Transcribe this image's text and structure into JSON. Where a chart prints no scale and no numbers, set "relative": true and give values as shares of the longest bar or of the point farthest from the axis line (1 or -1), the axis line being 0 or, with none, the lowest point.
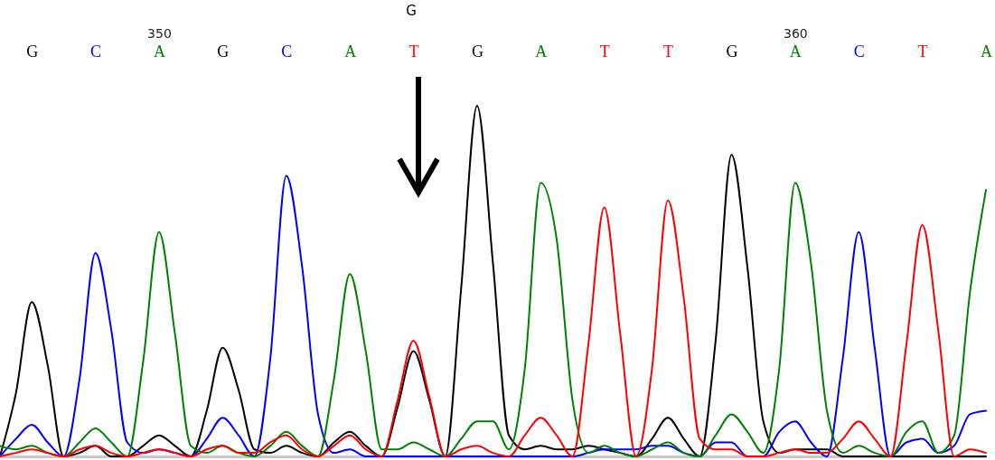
{
  "chart_data": {
    "type": "line",
    "relative": true,
    "annotations": [
      "G"
    ],
    "categories": [
      null,
      null,
      "G",
      null,
      null,
      null,
      "C",
      null,
      null,
      null,
      "A",
      null,
      null,
      null,
      "G",
      null,
      null,
      null,
      "C",
      null,
      null,
      null,
      "A",
      null,
      null,
      null,
      "T",
      null,
      null,
      null,
      "G",
      null,
      null,
      null,
      "A",
      null,
      null,
      null,
      "T",
      null,
      null,
      null,
      "T",
      null,
      null,
      null,
      "G",
      null,
      null,
      null,
      "A",
      null,
      null,
      null,
      "C",
      null,
      null,
      null,
      "T",
      null,
      null,
      null,
      "A"
    ],
    "x2lim": [
      347.5,
      363
    ],
    "x2ticks": [
      350,
      360
    ],
    "series": [
      {
        "color": "#000000",
        "values": [
          0,
          0.18,
          0.44,
          0.26,
          0,
          0.01,
          0.03,
          0,
          0,
          0.03,
          0.06,
          0.03,
          0,
          0.13,
          0.31,
          0.19,
          0.02,
          0.01,
          0.03,
          0.01,
          0,
          0.04,
          0.07,
          0.03,
          0,
          0.14,
          0.3,
          0.16,
          0,
          0.48,
          1,
          0.55,
          0.06,
          0.02,
          0.03,
          0.02,
          0.02,
          0.03,
          0.02,
          0.01,
          0,
          0.05,
          0.11,
          0.05,
          0,
          0.33,
          0.86,
          0.54,
          0.1,
          0.01,
          0.02,
          0.02,
          0.02,
          0,
          0,
          0,
          0,
          0,
          0,
          0,
          0,
          0,
          0
        ]
      },
      {
        "color": "#0000ff",
        "values": [
          0,
          0.05,
          0.09,
          0.04,
          0,
          0.22,
          0.58,
          0.36,
          0.04,
          0.01,
          0.02,
          0.01,
          0,
          0.05,
          0.11,
          0.06,
          0,
          0.28,
          0.8,
          0.54,
          0.12,
          0.01,
          0.02,
          0,
          0,
          0,
          0,
          0,
          0,
          0,
          0,
          0,
          0,
          0,
          0,
          0,
          0,
          0.01,
          0.02,
          0.02,
          0.02,
          0.03,
          0.03,
          0.01,
          0,
          0.04,
          0.04,
          0,
          0,
          0.07,
          0.1,
          0.04,
          0,
          0.28,
          0.64,
          0.31,
          0,
          0.04,
          0.05,
          0.01,
          0.03,
          0.12,
          0.13
        ]
      },
      {
        "color": "#008000",
        "values": [
          0.03,
          0.02,
          0.03,
          0.01,
          0,
          0.04,
          0.08,
          0.04,
          0,
          0.27,
          0.64,
          0.35,
          0.03,
          0.01,
          0.03,
          0.01,
          0,
          0.03,
          0.07,
          0.03,
          0,
          0.22,
          0.52,
          0.3,
          0.02,
          0.02,
          0.04,
          0.02,
          0,
          0.05,
          0.1,
          0.1,
          0.02,
          0.25,
          0.78,
          0.62,
          0.16,
          0.01,
          0.03,
          0.01,
          0,
          0.02,
          0.04,
          0.01,
          0,
          0.06,
          0.12,
          0.07,
          0.01,
          0.25,
          0.78,
          0.55,
          0.13,
          0.01,
          0.03,
          0.01,
          0,
          0.07,
          0.1,
          0.01,
          0.06,
          0.47,
          0.76
        ]
      },
      {
        "color": "#ff0000",
        "values": [
          0,
          0.01,
          0.02,
          0.01,
          0,
          0.02,
          0.03,
          0.01,
          0,
          0.01,
          0.02,
          0.01,
          0,
          0.02,
          0.03,
          0.01,
          0.01,
          0.04,
          0.06,
          0.02,
          0,
          0.03,
          0.06,
          0.02,
          0,
          0.16,
          0.33,
          0.17,
          0,
          0.02,
          0.03,
          0.01,
          0,
          0.06,
          0.11,
          0.06,
          0,
          0.32,
          0.71,
          0.35,
          0,
          0.25,
          0.73,
          0.45,
          0.05,
          0.02,
          0.02,
          0,
          0,
          0.01,
          0.02,
          0.01,
          0.01,
          0.05,
          0.1,
          0.05,
          0,
          0.32,
          0.66,
          0.36,
          0,
          0.02,
          0.01
        ]
      }
    ]
  }
}
